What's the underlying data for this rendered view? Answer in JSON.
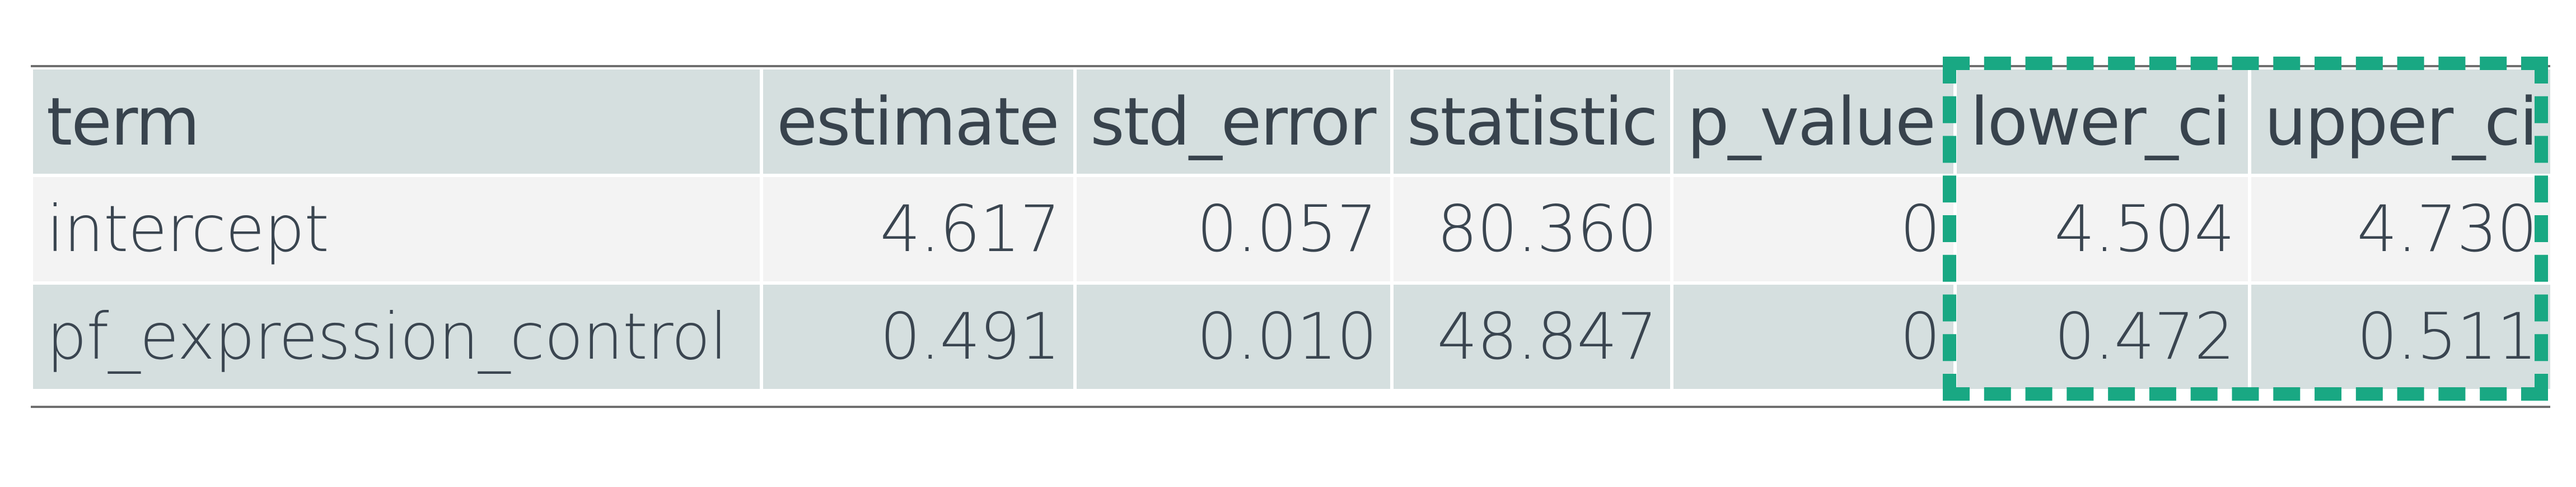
{
  "table": {
    "headers": [
      "term",
      "estimate",
      "std_error",
      "statistic",
      "p_value",
      "lower_ci",
      "upper_ci"
    ],
    "rows": [
      [
        "intercept",
        "4.617",
        "0.057",
        "80.360",
        "0",
        "4.504",
        "4.730"
      ],
      [
        "pf_expression_control",
        "0.491",
        "0.010",
        "48.847",
        "0",
        "0.472",
        "0.511"
      ]
    ]
  },
  "highlight": {
    "columns": [
      "lower_ci",
      "upper_ci"
    ],
    "color": "#19a883"
  },
  "colors": {
    "header_bg": "#d5dfdf",
    "row_light": "#f3f3f3",
    "row_shaded": "#d5dfdf",
    "text": "#3a4550"
  }
}
